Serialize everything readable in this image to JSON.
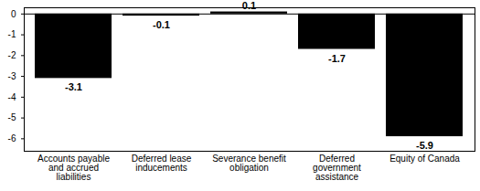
{
  "chart_data": {
    "type": "bar",
    "categories": [
      "Accounts payable and accrued liabilities",
      "Deferred lease inducements",
      "Severance benefit obligation",
      "Deferred government assistance",
      "Equity of Canada"
    ],
    "values": [
      -3.1,
      -0.1,
      0.1,
      -1.7,
      -5.9
    ],
    "color": "#000000",
    "ylim": [
      -6.6,
      0.3
    ],
    "yticks": [
      0,
      -1,
      -2,
      -3,
      -4,
      -5,
      -6
    ],
    "grid": false,
    "data_labels": true
  }
}
